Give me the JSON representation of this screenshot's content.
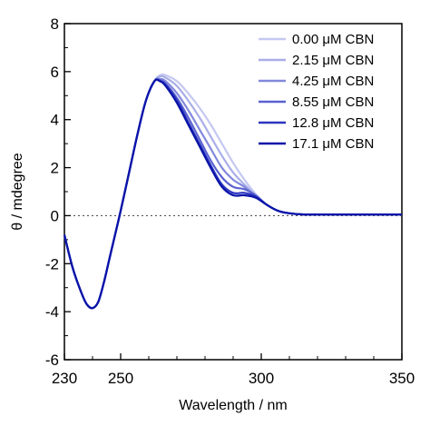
{
  "chart_data": {
    "type": "line",
    "title": "",
    "xlabel": "Wavelength / nm",
    "ylabel": "θ / mdegree",
    "xlim": [
      230,
      350
    ],
    "ylim": [
      -6,
      8
    ],
    "xticks": [
      230,
      250,
      300,
      350
    ],
    "xticks_minor": [
      240,
      260,
      270,
      280,
      290,
      310,
      320,
      330,
      340
    ],
    "yticks": [
      -6,
      -4,
      -2,
      0,
      2,
      4,
      6,
      8
    ],
    "yticks_minor": [
      -5,
      -3,
      -1,
      1,
      3,
      5,
      7
    ],
    "zero_line": "dotted",
    "grid": false,
    "legend_position": "top-right",
    "series": [
      {
        "name": "0.00 μM CBN",
        "color": "#c5c8f0",
        "x": [
          230,
          233,
          236,
          238,
          240,
          242,
          244,
          246,
          248,
          250,
          253,
          256,
          259,
          262,
          264,
          266,
          270,
          274,
          278,
          282,
          286,
          290,
          294,
          298,
          302,
          306,
          310,
          315,
          320,
          325,
          330,
          340,
          350
        ],
        "y": [
          -0.8,
          -2.2,
          -3.2,
          -3.7,
          -3.85,
          -3.6,
          -2.8,
          -1.8,
          -0.8,
          0.2,
          1.8,
          3.4,
          4.8,
          5.6,
          5.85,
          5.85,
          5.6,
          5.1,
          4.5,
          3.8,
          3.0,
          2.2,
          1.5,
          0.9,
          0.45,
          0.2,
          0.1,
          0.05,
          0.05,
          0.05,
          0.05,
          0.05,
          0.05
        ]
      },
      {
        "name": "2.15 μM CBN",
        "color": "#a9aee8",
        "x": [
          230,
          233,
          236,
          238,
          240,
          242,
          244,
          246,
          248,
          250,
          253,
          256,
          259,
          262,
          264,
          266,
          270,
          274,
          278,
          282,
          286,
          290,
          294,
          298,
          302,
          306,
          310,
          315,
          320,
          325,
          330,
          340,
          350
        ],
        "y": [
          -0.8,
          -2.2,
          -3.2,
          -3.7,
          -3.85,
          -3.6,
          -2.8,
          -1.8,
          -0.8,
          0.2,
          1.8,
          3.4,
          4.8,
          5.6,
          5.8,
          5.75,
          5.4,
          4.8,
          4.1,
          3.3,
          2.5,
          1.8,
          1.3,
          0.85,
          0.45,
          0.2,
          0.1,
          0.05,
          0.05,
          0.05,
          0.05,
          0.05,
          0.05
        ]
      },
      {
        "name": "4.25 μM CBN",
        "color": "#8289dc",
        "x": [
          230,
          233,
          236,
          238,
          240,
          242,
          244,
          246,
          248,
          250,
          253,
          256,
          259,
          262,
          264,
          266,
          270,
          274,
          278,
          282,
          286,
          290,
          294,
          298,
          302,
          306,
          310,
          315,
          320,
          325,
          330,
          340,
          350
        ],
        "y": [
          -0.8,
          -2.2,
          -3.2,
          -3.7,
          -3.85,
          -3.6,
          -2.8,
          -1.8,
          -0.8,
          0.2,
          1.8,
          3.4,
          4.8,
          5.6,
          5.7,
          5.6,
          5.1,
          4.4,
          3.6,
          2.8,
          2.0,
          1.5,
          1.2,
          0.8,
          0.45,
          0.2,
          0.1,
          0.05,
          0.05,
          0.05,
          0.05,
          0.05,
          0.05
        ]
      },
      {
        "name": "8.55 μM CBN",
        "color": "#5a62cf",
        "x": [
          230,
          233,
          236,
          238,
          240,
          242,
          244,
          246,
          248,
          250,
          253,
          256,
          259,
          262,
          264,
          266,
          270,
          274,
          278,
          282,
          286,
          290,
          294,
          298,
          302,
          306,
          310,
          315,
          320,
          325,
          330,
          340,
          350
        ],
        "y": [
          -0.8,
          -2.2,
          -3.2,
          -3.7,
          -3.85,
          -3.6,
          -2.8,
          -1.8,
          -0.8,
          0.2,
          1.8,
          3.4,
          4.8,
          5.6,
          5.65,
          5.5,
          4.9,
          4.1,
          3.2,
          2.3,
          1.6,
          1.2,
          1.1,
          0.85,
          0.45,
          0.2,
          0.1,
          0.05,
          0.05,
          0.05,
          0.05,
          0.05,
          0.05
        ]
      },
      {
        "name": "12.8 μM CBN",
        "color": "#2c34c0",
        "x": [
          230,
          233,
          236,
          238,
          240,
          242,
          244,
          246,
          248,
          250,
          253,
          256,
          259,
          262,
          264,
          266,
          270,
          274,
          278,
          282,
          286,
          290,
          294,
          298,
          302,
          306,
          310,
          315,
          320,
          325,
          330,
          340,
          350
        ],
        "y": [
          -0.8,
          -2.2,
          -3.2,
          -3.7,
          -3.85,
          -3.6,
          -2.8,
          -1.8,
          -0.8,
          0.2,
          1.8,
          3.4,
          4.8,
          5.6,
          5.6,
          5.45,
          4.8,
          3.9,
          3.0,
          2.1,
          1.3,
          0.95,
          0.95,
          0.8,
          0.45,
          0.2,
          0.1,
          0.05,
          0.05,
          0.05,
          0.05,
          0.05,
          0.05
        ]
      },
      {
        "name": "17.1 μM CBN",
        "color": "#0a14a8",
        "x": [
          230,
          233,
          236,
          238,
          240,
          242,
          244,
          246,
          248,
          250,
          253,
          256,
          259,
          262,
          264,
          266,
          270,
          274,
          278,
          282,
          286,
          290,
          294,
          298,
          302,
          306,
          310,
          315,
          320,
          325,
          330,
          340,
          350
        ],
        "y": [
          -0.8,
          -2.2,
          -3.2,
          -3.7,
          -3.85,
          -3.6,
          -2.8,
          -1.8,
          -0.8,
          0.2,
          1.8,
          3.4,
          4.8,
          5.6,
          5.6,
          5.4,
          4.7,
          3.8,
          2.9,
          2.0,
          1.2,
          0.85,
          0.85,
          0.75,
          0.45,
          0.2,
          0.1,
          0.05,
          0.05,
          0.05,
          0.05,
          0.05,
          0.05
        ]
      }
    ]
  }
}
